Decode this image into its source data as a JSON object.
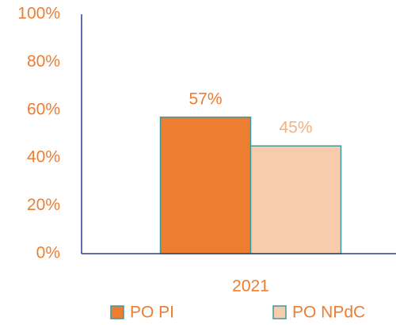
{
  "chart_data": {
    "type": "bar",
    "categories": [
      "2021"
    ],
    "series": [
      {
        "name": "PO PI",
        "color": "#ed7d31",
        "values": [
          57
        ],
        "value_labels": [
          "57%"
        ]
      },
      {
        "name": "PO NPdC",
        "color": "#f8cbad",
        "values": [
          45
        ],
        "value_labels": [
          "45%"
        ]
      }
    ],
    "ylim": [
      0,
      100
    ],
    "yticks": [
      {
        "value": 0,
        "label": "0%"
      },
      {
        "value": 20,
        "label": "20%"
      },
      {
        "value": 40,
        "label": "40%"
      },
      {
        "value": 60,
        "label": "60%"
      },
      {
        "value": 80,
        "label": "80%"
      },
      {
        "value": 100,
        "label": "100%"
      }
    ],
    "grid": false,
    "legend": "bottom"
  }
}
